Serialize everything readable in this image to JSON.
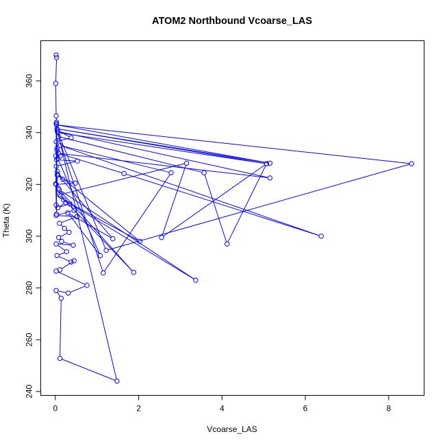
{
  "chart_data": {
    "type": "line",
    "title": "ATOM2 Northbound Vcoarse_LAS",
    "xlabel": "Vcoarse_LAS",
    "ylabel": "Theta (K)",
    "xlim": [
      -0.35,
      8.85
    ],
    "ylim": [
      238.5,
      375.5
    ],
    "x_ticks": [
      0,
      2,
      4,
      6,
      8
    ],
    "y_ticks": [
      240,
      260,
      280,
      300,
      320,
      340,
      360
    ],
    "grid": false,
    "legend": "none",
    "marker": "open-circle",
    "series_color": "#0000ff",
    "series": [
      {
        "values": [
          [
            0.02,
            370.0
          ],
          [
            0.03,
            369.0
          ],
          [
            0.01,
            359.0
          ],
          [
            0.02,
            346.5
          ],
          [
            0.03,
            344.0
          ],
          [
            0.05,
            341.0
          ],
          [
            0.38,
            338.0
          ],
          [
            0.02,
            336.5
          ],
          [
            0.04,
            333.0
          ],
          [
            0.01,
            331.0
          ],
          [
            0.12,
            331.0
          ],
          [
            0.03,
            329.5
          ],
          [
            0.53,
            329.0
          ],
          [
            0.02,
            327.0
          ],
          [
            0.05,
            325.0
          ],
          [
            0.18,
            322.0
          ],
          [
            0.48,
            320.5
          ],
          [
            0.02,
            320.0
          ],
          [
            0.07,
            318.5
          ],
          [
            0.13,
            315.5
          ],
          [
            0.25,
            313.0
          ],
          [
            0.06,
            311.0
          ],
          [
            0.35,
            312.5
          ],
          [
            0.45,
            310.0
          ],
          [
            0.02,
            308.0
          ],
          [
            0.52,
            307.5
          ],
          [
            0.1,
            305.0
          ],
          [
            0.22,
            303.0
          ],
          [
            0.33,
            301.5
          ],
          [
            0.08,
            299.5
          ],
          [
            0.15,
            298.0
          ],
          [
            0.43,
            296.5
          ],
          [
            0.02,
            297.0
          ],
          [
            0.27,
            294.0
          ],
          [
            0.04,
            292.5
          ],
          [
            0.38,
            290.0
          ],
          [
            0.45,
            290.5
          ],
          [
            0.11,
            287.0
          ],
          [
            0.02,
            286.5
          ],
          [
            0.76,
            281.0
          ],
          [
            0.31,
            278.0
          ],
          [
            0.02,
            279.0
          ],
          [
            0.14,
            276.0
          ],
          [
            0.11,
            252.8
          ],
          [
            1.48,
            244.0
          ],
          [
            0.06,
            340.0
          ],
          [
            5.07,
            328.0
          ],
          [
            0.04,
            341.5
          ],
          [
            5.15,
            328.2
          ],
          [
            0.03,
            343.0
          ],
          [
            8.55,
            328.0
          ],
          [
            1.22,
            294.5
          ],
          [
            0.05,
            340.5
          ],
          [
            5.15,
            322.5
          ],
          [
            0.08,
            332.0
          ],
          [
            1.65,
            324.2
          ],
          [
            6.38,
            300.0
          ],
          [
            0.12,
            335.0
          ],
          [
            2.78,
            324.5
          ],
          [
            1.15,
            285.8
          ],
          [
            0.07,
            338.5
          ],
          [
            3.57,
            324.5
          ],
          [
            4.12,
            297.0
          ],
          [
            5.07,
            328.0
          ],
          [
            2.55,
            299.5
          ],
          [
            3.15,
            328.2
          ],
          [
            0.1,
            316.0
          ],
          [
            1.88,
            286.0
          ],
          [
            0.09,
            318.0
          ],
          [
            3.37,
            283.0
          ],
          [
            0.2,
            314.0
          ],
          [
            2.03,
            298.0
          ],
          [
            0.05,
            324.0
          ],
          [
            1.38,
            299.0
          ],
          [
            0.3,
            309.0
          ],
          [
            1.08,
            292.5
          ],
          [
            0.06,
            330.0
          ],
          [
            0.02,
            343.5
          ],
          [
            0.03,
            308.5
          ],
          [
            0.01,
            320.2
          ],
          [
            0.04,
            334.0
          ],
          [
            0.02,
            312.0
          ],
          [
            0.05,
            323.5
          ]
        ]
      }
    ]
  }
}
